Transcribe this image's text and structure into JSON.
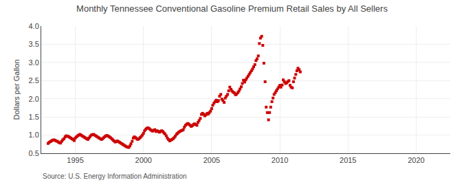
{
  "chart_data": {
    "type": "scatter",
    "title": "Monthly Tennessee Conventional Gasoline Premium Retail Sales by All Sellers",
    "ylabel": "Dollars per Gallon",
    "annotations": [
      "Source: U.S. Energy Information Administration"
    ],
    "xlim": [
      1992.5,
      2022.5
    ],
    "ylim": [
      0.5,
      4.0
    ],
    "xticks": [
      1995,
      2000,
      2005,
      2010,
      2015,
      2020
    ],
    "yticks": [
      0.5,
      {
        "value": 1.0,
        "label": "1.0"
      },
      1.5,
      {
        "value": 2.0,
        "label": "2.0"
      },
      2.5,
      {
        "value": 3.0,
        "label": "3.0"
      },
      3.5,
      {
        "value": 4.0,
        "label": "4.0"
      }
    ],
    "grid": true,
    "color": "#cc0000",
    "marker": "square",
    "x": [
      1993.0,
      1993.08,
      1993.17,
      1993.25,
      1993.33,
      1993.42,
      1993.5,
      1993.58,
      1993.67,
      1993.75,
      1993.83,
      1993.92,
      1994.0,
      1994.08,
      1994.17,
      1994.25,
      1994.33,
      1994.42,
      1994.5,
      1994.58,
      1994.67,
      1994.75,
      1994.83,
      1994.92,
      1995.0,
      1995.08,
      1995.17,
      1995.25,
      1995.33,
      1995.42,
      1995.5,
      1995.58,
      1995.67,
      1995.75,
      1995.83,
      1995.92,
      1996.0,
      1996.08,
      1996.17,
      1996.25,
      1996.33,
      1996.42,
      1996.5,
      1996.58,
      1996.67,
      1996.75,
      1996.83,
      1996.92,
      1997.0,
      1997.08,
      1997.17,
      1997.25,
      1997.33,
      1997.42,
      1997.5,
      1997.58,
      1997.67,
      1997.75,
      1997.83,
      1997.92,
      1998.0,
      1998.08,
      1998.17,
      1998.25,
      1998.33,
      1998.42,
      1998.5,
      1998.58,
      1998.67,
      1998.75,
      1998.83,
      1998.92,
      1999.0,
      1999.08,
      1999.17,
      1999.25,
      1999.33,
      1999.42,
      1999.5,
      1999.58,
      1999.67,
      1999.75,
      1999.83,
      1999.92,
      2000.0,
      2000.08,
      2000.17,
      2000.25,
      2000.33,
      2000.42,
      2000.5,
      2000.58,
      2000.67,
      2000.75,
      2000.83,
      2000.92,
      2001.0,
      2001.08,
      2001.17,
      2001.25,
      2001.33,
      2001.42,
      2001.5,
      2001.58,
      2001.67,
      2001.75,
      2001.83,
      2001.92,
      2002.0,
      2002.08,
      2002.17,
      2002.25,
      2002.33,
      2002.42,
      2002.5,
      2002.58,
      2002.67,
      2002.75,
      2002.83,
      2002.92,
      2003.0,
      2003.08,
      2003.17,
      2003.25,
      2003.33,
      2003.42,
      2003.5,
      2003.58,
      2003.67,
      2003.75,
      2003.83,
      2003.92,
      2004.0,
      2004.08,
      2004.17,
      2004.25,
      2004.33,
      2004.42,
      2004.5,
      2004.58,
      2004.67,
      2004.75,
      2004.83,
      2004.92,
      2005.0,
      2005.08,
      2005.17,
      2005.25,
      2005.33,
      2005.42,
      2005.5,
      2005.58,
      2005.67,
      2005.75,
      2005.83,
      2005.92,
      2006.0,
      2006.08,
      2006.17,
      2006.25,
      2006.33,
      2006.42,
      2006.5,
      2006.58,
      2006.67,
      2006.75,
      2006.83,
      2006.92,
      2007.0,
      2007.08,
      2007.17,
      2007.25,
      2007.33,
      2007.42,
      2007.5,
      2007.58,
      2007.67,
      2007.75,
      2007.83,
      2007.92,
      2008.0,
      2008.08,
      2008.17,
      2008.25,
      2008.33,
      2008.42,
      2008.5,
      2008.58,
      2008.67,
      2008.75,
      2008.83,
      2008.92,
      2009.0,
      2009.08,
      2009.17,
      2009.25,
      2009.33,
      2009.42,
      2009.5,
      2009.58,
      2009.67,
      2009.75,
      2009.83,
      2009.92,
      2010.0,
      2010.08,
      2010.17,
      2010.25,
      2010.33,
      2010.42,
      2010.5,
      2010.58,
      2010.67,
      2010.75,
      2010.83,
      2010.92,
      2011.0,
      2011.08,
      2011.17,
      2011.25,
      2011.33,
      2011.42,
      2011.5
    ],
    "values": [
      0.77,
      0.8,
      0.82,
      0.84,
      0.86,
      0.87,
      0.86,
      0.84,
      0.83,
      0.81,
      0.79,
      0.78,
      0.83,
      0.87,
      0.9,
      0.95,
      0.98,
      0.97,
      0.96,
      0.94,
      0.92,
      0.9,
      0.88,
      0.85,
      0.92,
      0.95,
      0.98,
      1.0,
      1.02,
      1.0,
      0.98,
      0.96,
      0.94,
      0.92,
      0.9,
      0.88,
      0.92,
      0.96,
      1.0,
      1.01,
      1.02,
      1.0,
      0.98,
      0.96,
      0.94,
      0.92,
      0.9,
      0.88,
      0.9,
      0.93,
      0.96,
      0.98,
      0.99,
      0.97,
      0.95,
      0.93,
      0.9,
      0.87,
      0.84,
      0.81,
      0.82,
      0.84,
      0.82,
      0.8,
      0.78,
      0.76,
      0.74,
      0.72,
      0.7,
      0.68,
      0.67,
      0.66,
      0.7,
      0.76,
      0.83,
      0.92,
      0.95,
      0.93,
      0.9,
      0.88,
      0.9,
      0.93,
      0.96,
      1.0,
      1.05,
      1.12,
      1.16,
      1.19,
      1.2,
      1.18,
      1.15,
      1.13,
      1.11,
      1.13,
      1.15,
      1.1,
      1.12,
      1.1,
      1.08,
      1.1,
      1.12,
      1.1,
      1.06,
      1.03,
      0.98,
      0.92,
      0.88,
      0.84,
      0.86,
      0.88,
      0.9,
      0.93,
      0.97,
      1.02,
      1.05,
      1.08,
      1.1,
      1.12,
      1.13,
      1.15,
      1.22,
      1.27,
      1.3,
      1.32,
      1.3,
      1.27,
      1.24,
      1.26,
      1.29,
      1.31,
      1.29,
      1.27,
      1.35,
      1.4,
      1.46,
      1.57,
      1.6,
      1.57,
      1.53,
      1.56,
      1.6,
      1.58,
      1.62,
      1.66,
      1.73,
      1.82,
      1.88,
      1.92,
      1.96,
      1.92,
      1.95,
      2.07,
      2.12,
      1.99,
      1.95,
      1.9,
      2.02,
      2.07,
      2.12,
      2.22,
      2.32,
      2.26,
      2.21,
      2.18,
      2.16,
      2.11,
      2.13,
      2.17,
      2.21,
      2.27,
      2.33,
      2.42,
      2.51,
      2.46,
      2.52,
      2.57,
      2.62,
      2.67,
      2.72,
      2.77,
      2.82,
      2.88,
      2.94,
      3.05,
      3.1,
      3.18,
      3.52,
      3.67,
      3.72,
      3.47,
      2.98,
      2.47,
      1.77,
      1.62,
      1.42,
      1.62,
      1.77,
      1.92,
      2.02,
      2.12,
      2.17,
      2.22,
      2.27,
      2.32,
      2.37,
      2.32,
      2.38,
      2.52,
      2.47,
      2.42,
      2.44,
      2.47,
      2.5,
      2.37,
      2.32,
      2.3,
      2.47,
      2.57,
      2.67,
      2.77,
      2.84,
      2.8,
      2.74
    ]
  }
}
